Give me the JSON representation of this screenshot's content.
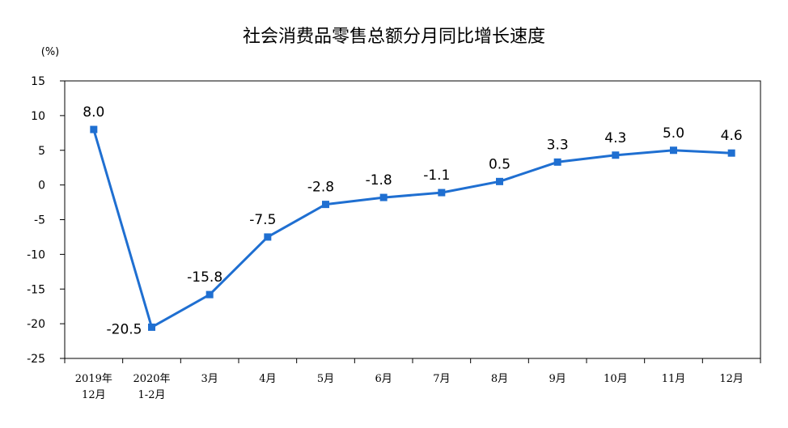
{
  "chart_data": {
    "type": "line",
    "title": "社会消费品零售总额分月同比增长速度",
    "ylabel": "(%)",
    "xlabel": "",
    "ylim": [
      -25,
      15
    ],
    "yticks": [
      15,
      10,
      5,
      0,
      -5,
      -10,
      -15,
      -20,
      -25
    ],
    "grid": false,
    "legend": "none",
    "categories": [
      [
        "2019年",
        "12月"
      ],
      [
        "2020年",
        "1-2月"
      ],
      [
        "3月"
      ],
      [
        "4月"
      ],
      [
        "5月"
      ],
      [
        "6月"
      ],
      [
        "7月"
      ],
      [
        "8月"
      ],
      [
        "9月"
      ],
      [
        "10月"
      ],
      [
        "11月"
      ],
      [
        "12月"
      ]
    ],
    "series": [
      {
        "color": "#1f6fd1",
        "marker": "square",
        "values": [
          8.0,
          -20.5,
          -15.8,
          -7.5,
          -2.8,
          -1.8,
          -1.1,
          0.5,
          3.3,
          4.3,
          5.0,
          4.6
        ],
        "labels": [
          "8.0",
          "-20.5",
          "-15.8",
          "-7.5",
          "-2.8",
          "-1.8",
          "-1.1",
          "0.5",
          "3.3",
          "4.3",
          "5.0",
          "4.6"
        ]
      }
    ]
  }
}
